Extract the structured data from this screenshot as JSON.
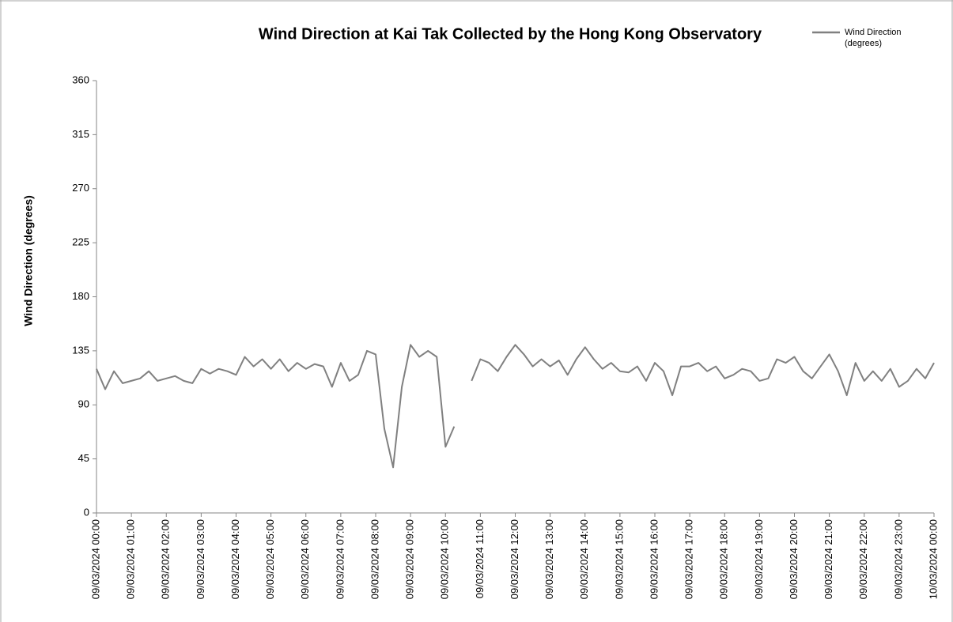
{
  "chart_data": {
    "type": "line",
    "title": "Wind Direction at Kai Tak Collected by the Hong Kong Observatory",
    "y_label": "Wind Direction (degrees)",
    "legend": "top-right",
    "ylim": [
      0,
      360
    ],
    "yticks": [
      0,
      45,
      90,
      135,
      180,
      225,
      270,
      315,
      360
    ],
    "categories": [
      "09/03/2024 00:00",
      null,
      null,
      null,
      "09/03/2024 01:00",
      null,
      null,
      null,
      "09/03/2024 02:00",
      null,
      null,
      null,
      "09/03/2024 03:00",
      null,
      null,
      null,
      "09/03/2024 04:00",
      null,
      null,
      null,
      "09/03/2024 05:00",
      null,
      null,
      null,
      "09/03/2024 06:00",
      null,
      null,
      null,
      "09/03/2024 07:00",
      null,
      null,
      null,
      "09/03/2024 08:00",
      null,
      null,
      null,
      "09/03/2024 09:00",
      null,
      null,
      null,
      "09/03/2024 10:00",
      null,
      null,
      null,
      "09/03/2024 11:00",
      null,
      null,
      null,
      "09/03/2024 12:00",
      null,
      null,
      null,
      "09/03/2024 13:00",
      null,
      null,
      null,
      "09/03/2024 14:00",
      null,
      null,
      null,
      "09/03/2024 15:00",
      null,
      null,
      null,
      "09/03/2024 16:00",
      null,
      null,
      null,
      "09/03/2024 17:00",
      null,
      null,
      null,
      "09/03/2024 18:00",
      null,
      null,
      null,
      "09/03/2024 19:00",
      null,
      null,
      null,
      "09/03/2024 20:00",
      null,
      null,
      null,
      "09/03/2024 21:00",
      null,
      null,
      null,
      "09/03/2024 22:00",
      null,
      null,
      null,
      "09/03/2024 23:00",
      null,
      null,
      null,
      "10/03/2024 00:00"
    ],
    "series": [
      {
        "name": "Wind Direction (degrees)",
        "color": "#808080",
        "values": [
          120,
          103,
          118,
          108,
          110,
          112,
          118,
          110,
          112,
          114,
          110,
          108,
          120,
          116,
          120,
          118,
          115,
          130,
          122,
          128,
          120,
          128,
          118,
          125,
          120,
          124,
          122,
          105,
          125,
          110,
          115,
          135,
          132,
          70,
          38,
          105,
          140,
          130,
          135,
          130,
          55,
          72,
          null,
          110,
          128,
          125,
          118,
          130,
          140,
          132,
          122,
          128,
          122,
          127,
          115,
          128,
          138,
          128,
          120,
          125,
          118,
          117,
          122,
          110,
          125,
          118,
          98,
          122,
          122,
          125,
          118,
          122,
          112,
          115,
          120,
          118,
          110,
          112,
          128,
          125,
          130,
          118,
          112,
          122,
          132,
          118,
          98,
          125,
          110,
          118,
          110,
          120,
          105,
          110,
          120,
          112,
          125
        ]
      }
    ]
  }
}
